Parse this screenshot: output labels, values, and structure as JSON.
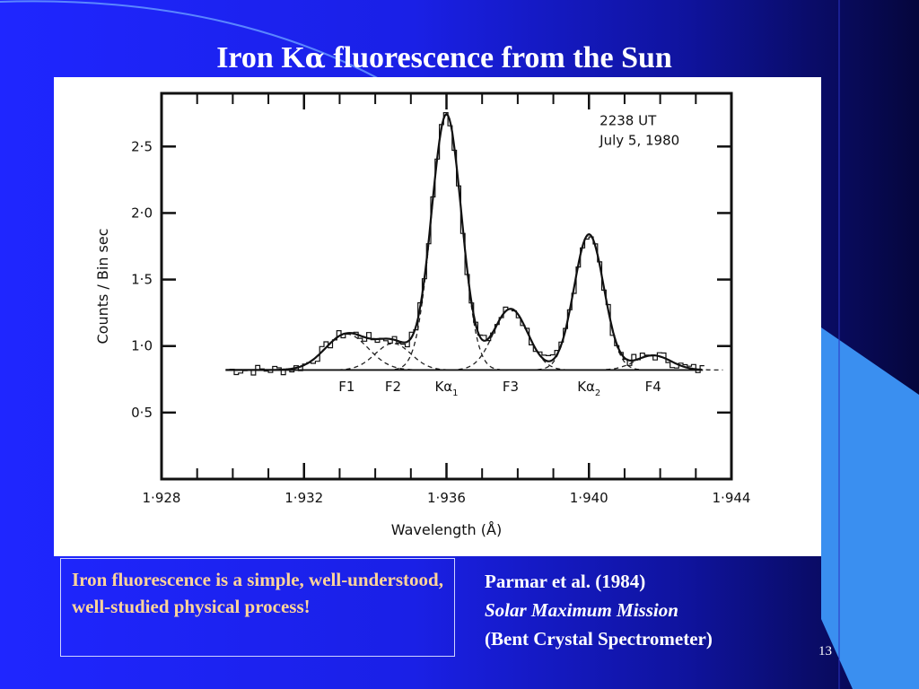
{
  "slide": {
    "title_prefix": "Iron K",
    "title_alpha": "α",
    "title_suffix": " fluorescence from the Sun",
    "note": "Iron fluorescence is a simple, well-understood, well-studied physical process!",
    "reference": {
      "authors": "Parmar et al. (1984)",
      "mission": "Solar Maximum Mission",
      "instrument": "(Bent Crystal Spectrometer)"
    },
    "page_number": "13",
    "colors": {
      "background": "#1f26ff",
      "dark_edge": "#05063c",
      "note_text": "#ffd49a",
      "accent_shape": "#3a8ff0"
    }
  },
  "chart_data": {
    "type": "line",
    "title": "",
    "annotation_lines": [
      "2238 UT",
      "July 5, 1980"
    ],
    "xlabel": "Wavelength (Å)",
    "ylabel": "Counts / Bin sec",
    "xlim": [
      1.928,
      1.944
    ],
    "ylim": [
      0.0,
      2.9
    ],
    "x_ticks": [
      {
        "value": 1.928,
        "label": "1·928"
      },
      {
        "value": 1.932,
        "label": "1·932"
      },
      {
        "value": 1.936,
        "label": "1·936"
      },
      {
        "value": 1.94,
        "label": "1·940"
      },
      {
        "value": 1.944,
        "label": "1·944"
      }
    ],
    "y_ticks": [
      {
        "value": 0.5,
        "label": "0·5"
      },
      {
        "value": 1.0,
        "label": "1·0"
      },
      {
        "value": 1.5,
        "label": "1·5"
      },
      {
        "value": 2.0,
        "label": "2·0"
      },
      {
        "value": 2.5,
        "label": "2·5"
      }
    ],
    "baseline": 0.82,
    "peaks": [
      {
        "label": "F1",
        "sub": "",
        "center": 1.9332,
        "amplitude": 0.27,
        "width": 0.0006
      },
      {
        "label": "F2",
        "sub": "",
        "center": 1.9345,
        "amplitude": 0.2,
        "width": 0.0005
      },
      {
        "label": "Kα",
        "sub": "1",
        "center": 1.936,
        "amplitude": 1.92,
        "width": 0.00042
      },
      {
        "label": "F3",
        "sub": "",
        "center": 1.9378,
        "amplitude": 0.46,
        "width": 0.00048
      },
      {
        "label": "Kα",
        "sub": "2",
        "center": 1.94,
        "amplitude": 1.02,
        "width": 0.00042
      },
      {
        "label": "F4",
        "sub": "",
        "center": 1.9418,
        "amplitude": 0.11,
        "width": 0.0005
      }
    ],
    "data_range": [
      1.9298,
      1.9432
    ],
    "series": [
      {
        "style": "histogram"
      },
      {
        "style": "fit-solid"
      },
      {
        "style": "components-dashed"
      }
    ]
  }
}
